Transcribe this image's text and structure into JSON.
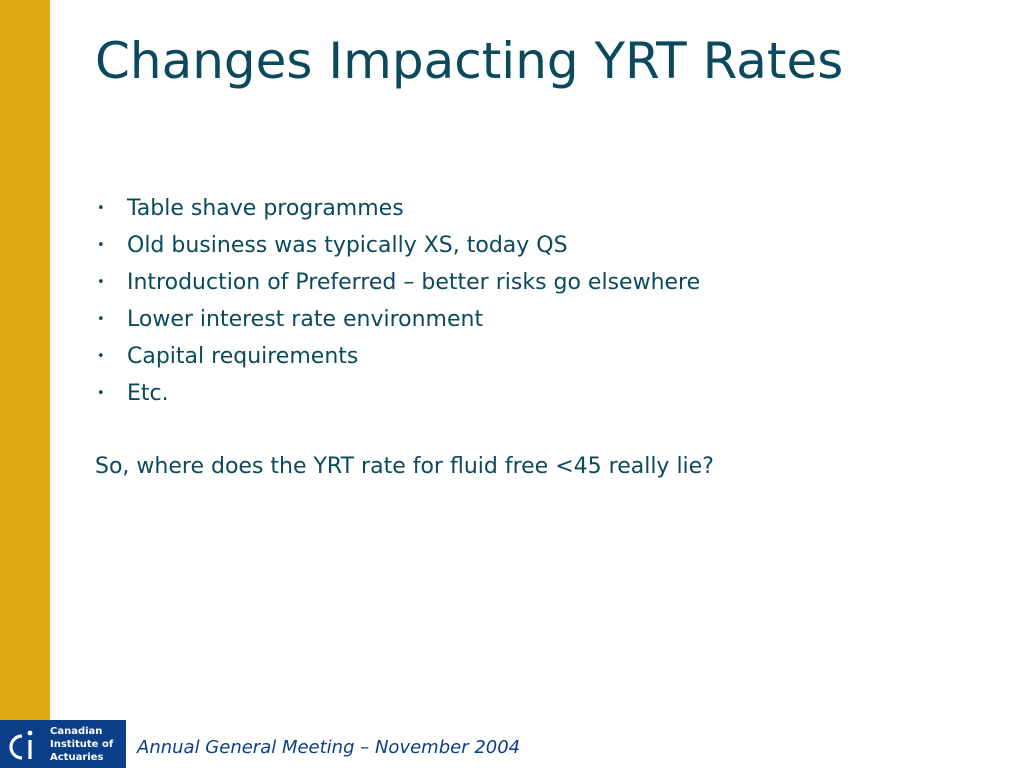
{
  "slide": {
    "title": "Changes Impacting YRT Rates",
    "bullets": [
      {
        "text": "Table shave programmes"
      },
      {
        "text": "Old business was typically XS, today QS"
      },
      {
        "text": "Introduction of Preferred – better risks go elsewhere"
      },
      {
        "text": "Lower interest rate environment"
      },
      {
        "text": "Capital requirements"
      },
      {
        "text": "Etc."
      }
    ],
    "bullet_glyph": "•",
    "question": "So, where does the YRT rate for fluid free <45 really lie?"
  },
  "footer": {
    "text": "Annual General Meeting – November 2004"
  },
  "logo": {
    "lines": [
      "Canadian",
      "Institute of",
      "Actuaries"
    ],
    "icon": "cia-logo-icon"
  },
  "colors": {
    "accent_bar": "#e0aa12",
    "title": "#0a4a5c",
    "logo_bg": "#0b3f8a"
  }
}
